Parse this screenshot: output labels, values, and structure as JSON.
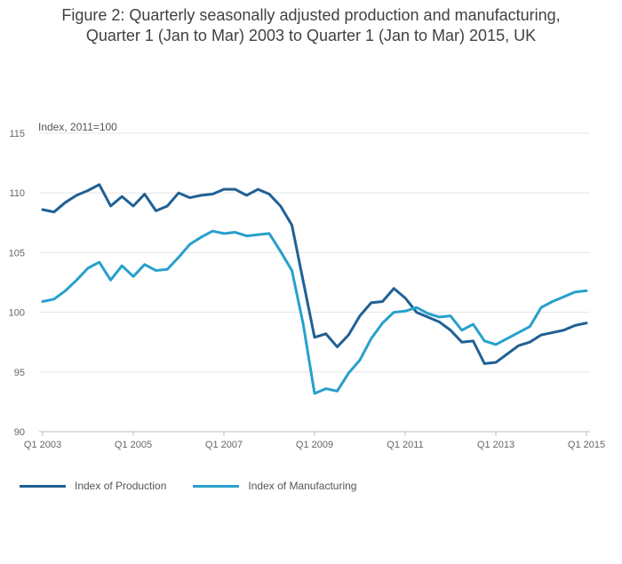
{
  "title_lines": [
    "Figure 2: Quarterly seasonally adjusted production and manufacturing,",
    "Quarter 1 (Jan to Mar) 2003 to Quarter 1 (Jan to Mar) 2015, UK"
  ],
  "chart_data": {
    "type": "line",
    "title": "Figure 2: Quarterly seasonally adjusted production and manufacturing, Quarter 1 (Jan to Mar) 2003 to Quarter 1 (Jan to Mar) 2015, UK",
    "ylabel": "Index, 2011=100",
    "xlabel": "",
    "ylim": [
      90,
      115
    ],
    "yticks": [
      90,
      95,
      100,
      105,
      110,
      115
    ],
    "x_tick_labels": [
      "Q1 2003",
      "Q1 2005",
      "Q1 2007",
      "Q1 2009",
      "Q1 2011",
      "Q1 2013",
      "Q1 2015"
    ],
    "x_tick_index": [
      0,
      8,
      16,
      24,
      32,
      40,
      48
    ],
    "grid": true,
    "legend_placement": "bottom-left",
    "categories": [
      "Q1 2003",
      "Q2 2003",
      "Q3 2003",
      "Q4 2003",
      "Q1 2004",
      "Q2 2004",
      "Q3 2004",
      "Q4 2004",
      "Q1 2005",
      "Q2 2005",
      "Q3 2005",
      "Q4 2005",
      "Q1 2006",
      "Q2 2006",
      "Q3 2006",
      "Q4 2006",
      "Q1 2007",
      "Q2 2007",
      "Q3 2007",
      "Q4 2007",
      "Q1 2008",
      "Q2 2008",
      "Q3 2008",
      "Q4 2008",
      "Q1 2009",
      "Q2 2009",
      "Q3 2009",
      "Q4 2009",
      "Q1 2010",
      "Q2 2010",
      "Q3 2010",
      "Q4 2010",
      "Q1 2011",
      "Q2 2011",
      "Q3 2011",
      "Q4 2011",
      "Q1 2012",
      "Q2 2012",
      "Q3 2012",
      "Q4 2012",
      "Q1 2013",
      "Q2 2013",
      "Q3 2013",
      "Q4 2013",
      "Q1 2014",
      "Q2 2014",
      "Q3 2014",
      "Q4 2014",
      "Q1 2015"
    ],
    "series": [
      {
        "name": "Index of Production",
        "color": "#206095",
        "values": [
          108.6,
          108.4,
          109.2,
          109.8,
          110.2,
          110.7,
          108.9,
          109.7,
          108.9,
          109.9,
          108.5,
          108.9,
          110.0,
          109.6,
          109.8,
          109.9,
          110.3,
          110.3,
          109.8,
          110.3,
          109.9,
          108.9,
          107.3,
          102.6,
          97.9,
          98.2,
          97.1,
          98.1,
          99.7,
          100.8,
          100.9,
          102.0,
          101.2,
          100.0,
          99.6,
          99.2,
          98.5,
          97.5,
          97.6,
          95.7,
          95.8,
          96.5,
          97.2,
          97.5,
          98.1,
          98.3,
          98.5,
          98.9,
          99.1
        ]
      },
      {
        "name": "Index of Manufacturing",
        "color": "#27a0cc",
        "values": [
          100.9,
          101.1,
          101.8,
          102.7,
          103.7,
          104.2,
          102.7,
          103.9,
          103.0,
          104.0,
          103.5,
          103.6,
          104.6,
          105.7,
          106.3,
          106.8,
          106.6,
          106.7,
          106.4,
          106.5,
          106.6,
          105.1,
          103.5,
          99.0,
          93.2,
          93.6,
          93.4,
          94.9,
          96.0,
          97.8,
          99.1,
          100.0,
          100.1,
          100.4,
          99.9,
          99.6,
          99.7,
          98.5,
          99.0,
          97.6,
          97.3,
          97.8,
          98.3,
          98.8,
          100.4,
          100.9,
          101.3,
          101.7,
          101.8
        ]
      }
    ]
  }
}
